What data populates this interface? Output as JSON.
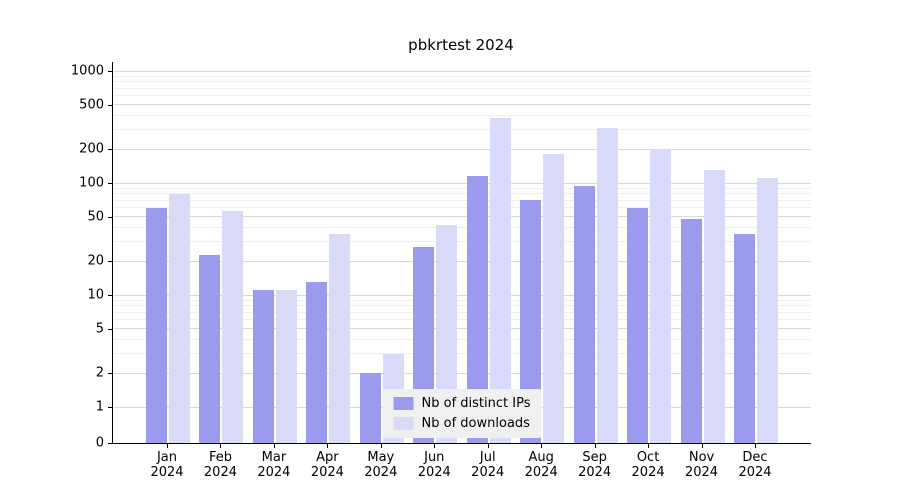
{
  "chart_data": {
    "type": "bar",
    "title": "pbkrtest 2024",
    "categories": [
      "Jan",
      "Feb",
      "Mar",
      "Apr",
      "May",
      "Jun",
      "Jul",
      "Aug",
      "Sep",
      "Oct",
      "Nov",
      "Dec"
    ],
    "year": "2024",
    "series": [
      {
        "name": "Nb of distinct IPs",
        "color": "#9b9bee",
        "values": [
          60,
          23,
          11,
          13,
          2,
          27,
          115,
          70,
          95,
          60,
          48,
          35
        ]
      },
      {
        "name": "Nb of downloads",
        "color": "#d9d9f8",
        "values": [
          80,
          56,
          11,
          35,
          3,
          42,
          380,
          180,
          310,
          200,
          130,
          110
        ]
      }
    ],
    "yticks": [
      0,
      1,
      2,
      5,
      10,
      20,
      50,
      100,
      200,
      500,
      1000
    ],
    "minor_yticks": [
      3,
      4,
      6,
      7,
      8,
      9,
      30,
      40,
      60,
      70,
      80,
      90,
      300,
      400,
      600,
      700,
      800,
      900
    ],
    "scale": "log",
    "ylim": [
      0,
      1100
    ],
    "grid": true,
    "legend_position": "lower center"
  }
}
